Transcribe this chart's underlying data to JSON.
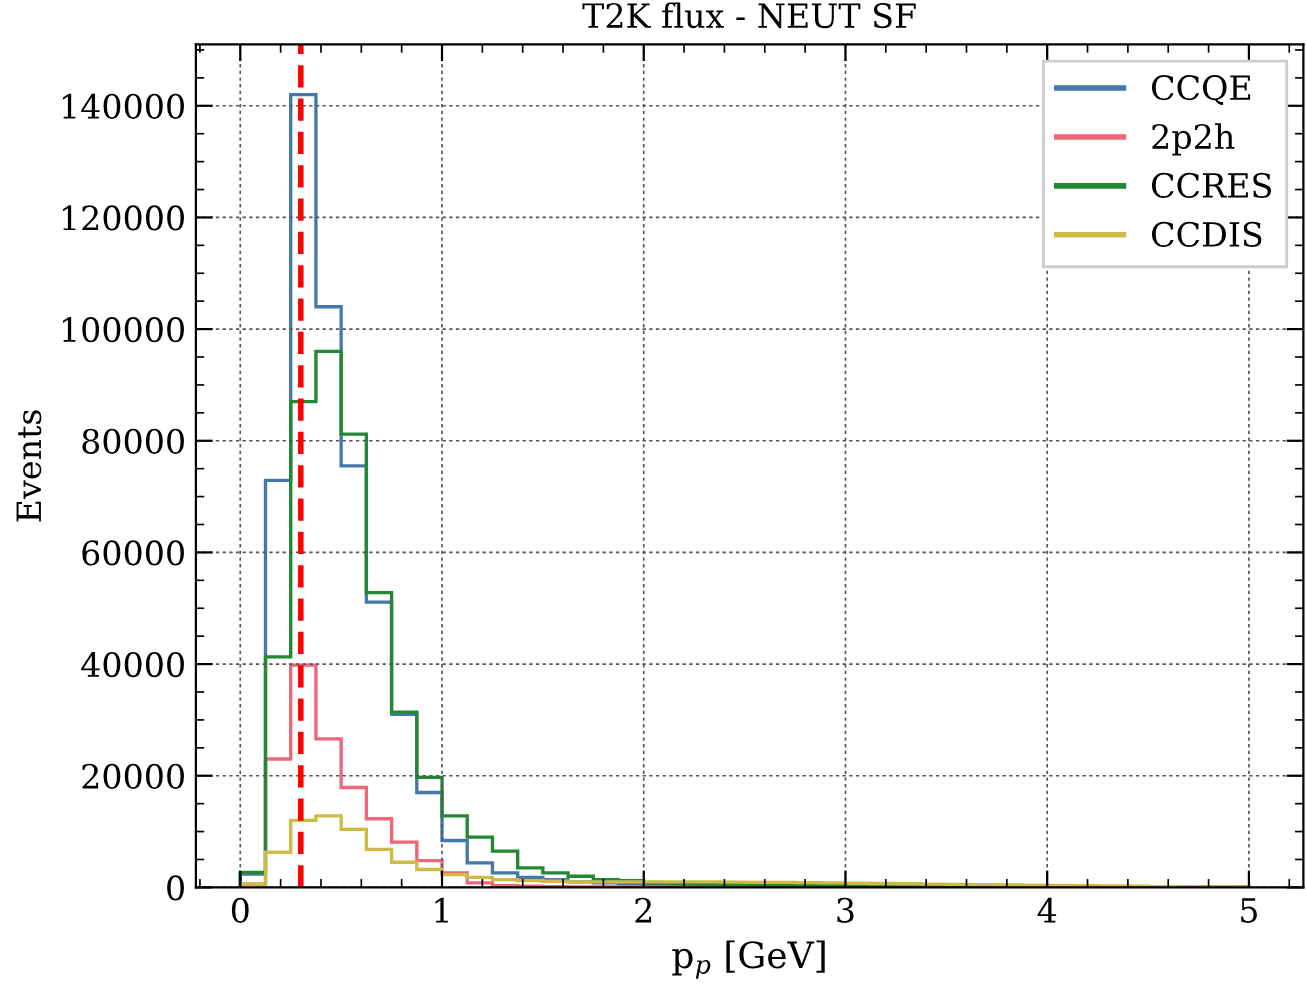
{
  "chart_data": {
    "type": "histogram",
    "title": "T2K flux - NEUT SF",
    "xlabel": "p$_{p}$ [GeV]",
    "ylabel": "Events",
    "bins": [
      0,
      0.125,
      0.25,
      0.375,
      0.5,
      0.625,
      0.75,
      0.875,
      1,
      1.125,
      1.25,
      1.375,
      1.5,
      1.625,
      1.75,
      1.875,
      2,
      2.125,
      2.25,
      2.375,
      2.5,
      2.625,
      2.75,
      2.875,
      3,
      3.125,
      3.25,
      3.375,
      3.5,
      3.625,
      3.75,
      3.875,
      4,
      4.125,
      4.25,
      4.375,
      4.5,
      4.625,
      4.75,
      4.875,
      5
    ],
    "series": [
      {
        "name": "CCQE",
        "color": "#4477aa",
        "values": [
          2400,
          72900,
          142000,
          104000,
          75500,
          51100,
          31000,
          17000,
          8400,
          4400,
          2600,
          1800,
          1400,
          1000,
          800,
          600,
          500,
          400,
          300,
          300,
          200,
          200,
          150,
          150,
          100,
          100,
          100,
          100,
          50,
          50,
          50,
          50,
          50,
          50,
          30,
          30,
          30,
          30,
          30,
          30
        ]
      },
      {
        "name": "2p2h",
        "color": "#ee6677",
        "values": [
          600,
          23000,
          39800,
          26600,
          17900,
          12300,
          8100,
          4800,
          2600,
          800,
          300,
          200,
          150,
          100,
          100,
          50,
          50,
          50,
          30,
          30,
          30,
          20,
          20,
          20,
          10,
          10,
          10,
          10,
          10,
          10,
          10,
          10,
          10,
          10,
          10,
          10,
          10,
          10,
          10,
          10
        ]
      },
      {
        "name": "CCRES",
        "color": "#228833",
        "values": [
          2700,
          41300,
          87000,
          96000,
          81200,
          52800,
          31400,
          19700,
          12800,
          9000,
          6500,
          3500,
          2600,
          2000,
          1400,
          1200,
          800,
          700,
          600,
          500,
          450,
          400,
          350,
          300,
          250,
          200,
          200,
          150,
          150,
          100,
          100,
          100,
          80,
          80,
          60,
          60,
          50,
          50,
          40,
          40
        ]
      },
      {
        "name": "CCDIS",
        "color": "#ccbb44",
        "values": [
          600,
          6300,
          12000,
          12800,
          10400,
          6800,
          4500,
          3200,
          2300,
          1800,
          1400,
          1200,
          1100,
          1000,
          1000,
          1000,
          1000,
          1000,
          1000,
          950,
          900,
          900,
          850,
          800,
          750,
          700,
          650,
          600,
          550,
          500,
          450,
          400,
          350,
          300,
          250,
          200,
          150,
          120,
          100,
          80
        ]
      }
    ],
    "xlim": [
      -0.22,
      5.27
    ],
    "ylim": [
      0,
      151000
    ],
    "xticks": [
      0,
      1,
      2,
      3,
      4,
      5
    ],
    "yticks": [
      0,
      20000,
      40000,
      60000,
      80000,
      100000,
      120000,
      140000
    ],
    "ref_lines": [
      {
        "axis": "x",
        "value": 0.3,
        "color": "#ff0000",
        "line_style": "dashed"
      }
    ],
    "grid": true,
    "legend": "top right"
  }
}
